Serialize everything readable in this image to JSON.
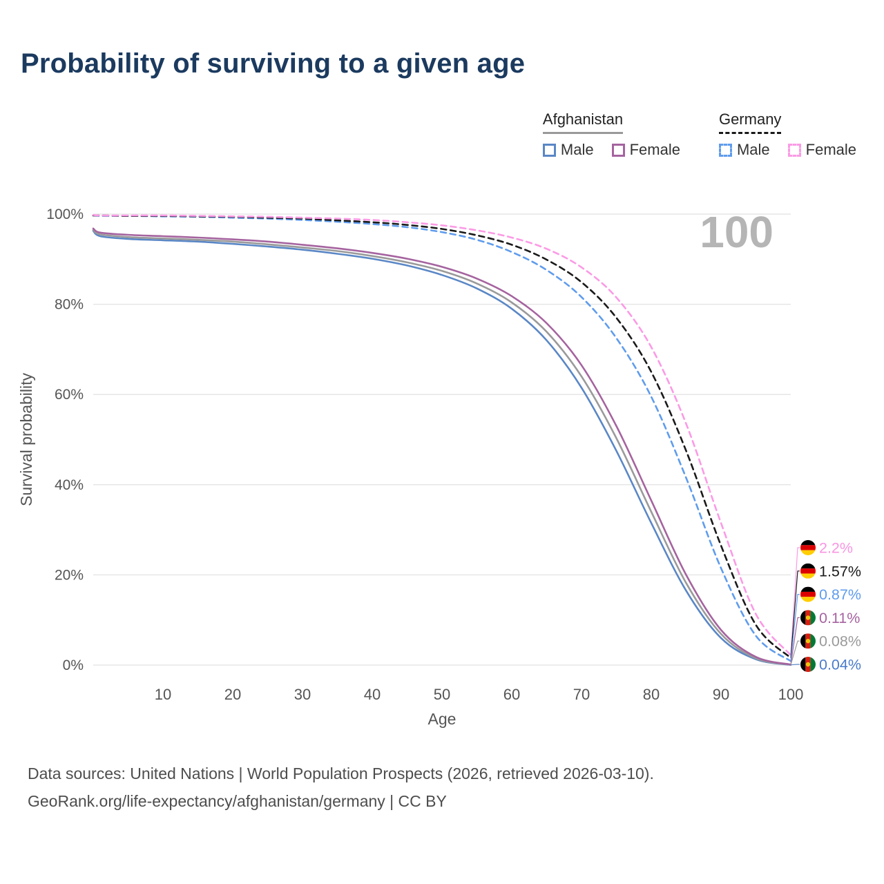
{
  "page": {
    "title": "Probability of surviving to a given age",
    "watermark": "100",
    "footer_line1": "Data sources: United Nations | World Population Prospects (2026, retrieved 2026-03-10).",
    "footer_line2": "GeoRank.org/life-expectancy/afghanistan/germany | CC BY"
  },
  "legend": {
    "groups": [
      {
        "label": "Afghanistan",
        "underline_style": "solid",
        "underline_color": "#999999",
        "items": [
          {
            "label": "Male",
            "color": "#5a87c6",
            "dash": "solid"
          },
          {
            "label": "Female",
            "color": "#a5639f",
            "dash": "solid"
          }
        ]
      },
      {
        "label": "Germany",
        "underline_style": "dashed",
        "underline_color": "#1a1a1a",
        "items": [
          {
            "label": "Male",
            "color": "#5f9ced",
            "dash": "dashed"
          },
          {
            "label": "Female",
            "color": "#fb9ae5",
            "dash": "dashed"
          }
        ]
      }
    ]
  },
  "chart_data": {
    "type": "line",
    "title": "Probability of surviving to a given age",
    "xlabel": "Age",
    "ylabel": "Survival probability",
    "xlim": [
      0,
      100
    ],
    "ylim": [
      0,
      100
    ],
    "x_ticks": [
      10,
      20,
      30,
      40,
      50,
      60,
      70,
      80,
      90,
      100
    ],
    "y_ticks": [
      0,
      20,
      40,
      60,
      80,
      100
    ],
    "grid": "horizontal",
    "watermark": "100",
    "legend_position": "top-right",
    "x": [
      0,
      1,
      5,
      10,
      15,
      20,
      25,
      30,
      35,
      40,
      45,
      50,
      55,
      60,
      65,
      70,
      75,
      80,
      85,
      90,
      95,
      100
    ],
    "series": [
      {
        "name": "Afghanistan Male",
        "color": "#5a87c6",
        "dash": "solid",
        "end_label": "0.04%",
        "label_color": "#4a7bc9",
        "flag": "afghanistan",
        "y": [
          96.3,
          95.1,
          94.5,
          94.2,
          93.9,
          93.4,
          92.8,
          92.1,
          91.2,
          90.1,
          88.6,
          86.5,
          83.5,
          79.0,
          72.0,
          61.5,
          47.5,
          31.5,
          16.5,
          6.0,
          1.3,
          0.04
        ]
      },
      {
        "name": "Afghanistan Both sexes",
        "color": "#9a9a9a",
        "dash": "solid",
        "end_label": "0.08%",
        "label_color": "#9a9a9a",
        "flag": "afghanistan",
        "y": [
          96.5,
          95.5,
          94.9,
          94.6,
          94.3,
          93.9,
          93.3,
          92.6,
          91.8,
          90.7,
          89.3,
          87.4,
          84.6,
          80.4,
          73.9,
          64.0,
          50.3,
          34.0,
          18.2,
          6.9,
          1.5,
          0.08
        ]
      },
      {
        "name": "Afghanistan Female",
        "color": "#a5639f",
        "dash": "solid",
        "end_label": "0.11%",
        "label_color": "#a5639f",
        "flag": "afghanistan",
        "y": [
          96.8,
          95.9,
          95.4,
          95.1,
          94.8,
          94.4,
          93.9,
          93.2,
          92.4,
          91.4,
          90.1,
          88.3,
          85.7,
          81.8,
          75.8,
          66.5,
          53.0,
          36.5,
          20.0,
          7.8,
          1.8,
          0.11
        ]
      },
      {
        "name": "Germany Male",
        "color": "#5f9ced",
        "dash": "dashed",
        "end_label": "0.87%",
        "label_color": "#5f9ced",
        "flag": "germany",
        "y": [
          99.7,
          99.6,
          99.6,
          99.5,
          99.4,
          99.2,
          99.0,
          98.7,
          98.3,
          97.8,
          97.1,
          96.0,
          94.3,
          91.6,
          87.6,
          81.6,
          72.5,
          59.5,
          41.5,
          21.5,
          6.5,
          0.87
        ]
      },
      {
        "name": "Germany Both sexes",
        "color": "#1a1a1a",
        "dash": "dashed",
        "end_label": "1.57%",
        "label_color": "#1a1a1a",
        "flag": "germany",
        "y": [
          99.7,
          99.7,
          99.6,
          99.6,
          99.5,
          99.4,
          99.2,
          99.0,
          98.6,
          98.2,
          97.6,
          96.7,
          95.3,
          93.2,
          89.9,
          84.9,
          77.0,
          65.0,
          47.5,
          26.5,
          8.9,
          1.57
        ]
      },
      {
        "name": "Germany Female",
        "color": "#fb9ae5",
        "dash": "dashed",
        "end_label": "2.2%",
        "label_color": "#f895e2",
        "flag": "germany",
        "y": [
          99.8,
          99.7,
          99.7,
          99.7,
          99.6,
          99.5,
          99.4,
          99.2,
          99.0,
          98.7,
          98.2,
          97.5,
          96.4,
          94.8,
          92.3,
          88.2,
          81.5,
          70.5,
          53.5,
          31.5,
          11.3,
          2.2
        ]
      }
    ]
  }
}
